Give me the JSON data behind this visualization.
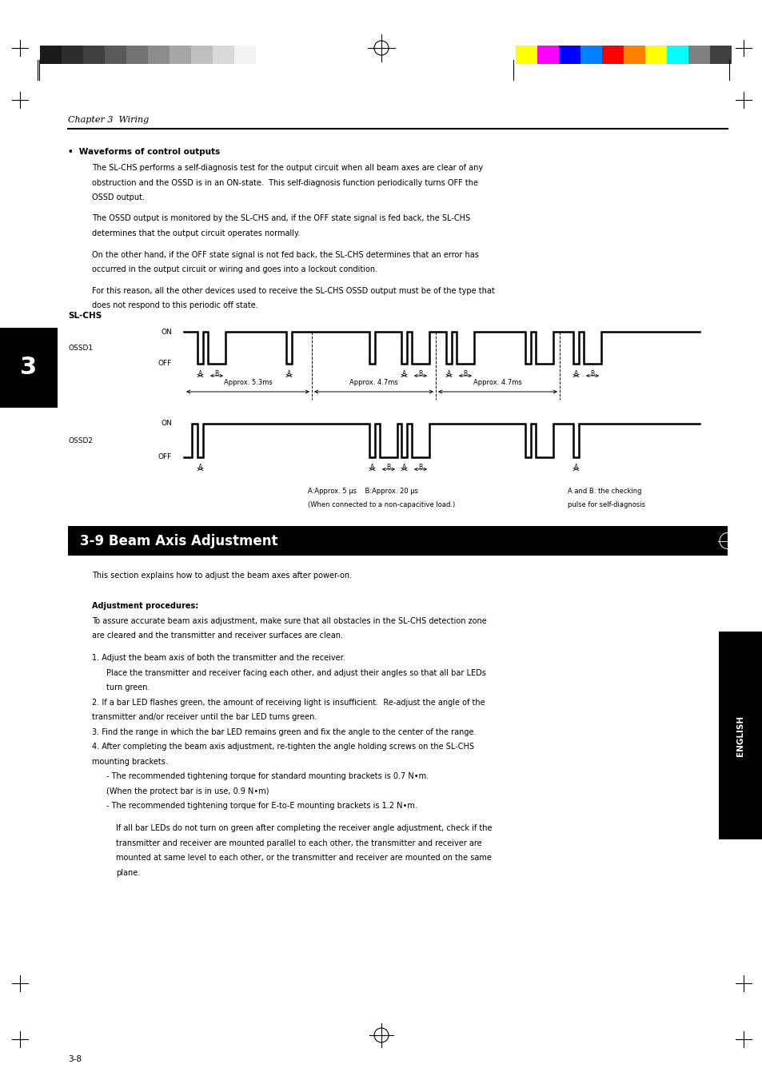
{
  "page_bg": "#ffffff",
  "page_width": 9.54,
  "page_height": 13.51,
  "dpi": 100,
  "header_bar_colors_left": [
    "#1a1a1a",
    "#2d2d2d",
    "#404040",
    "#595959",
    "#737373",
    "#8c8c8c",
    "#a6a6a6",
    "#bfbfbf",
    "#d9d9d9",
    "#f2f2f2"
  ],
  "header_bar_colors_right": [
    "#ffff00",
    "#ff00ff",
    "#0000ff",
    "#0080ff",
    "#ff0000",
    "#ff8000",
    "#ffff00",
    "#00ffff",
    "#808080",
    "#404040"
  ],
  "chapter_title": "Chapter 3  Wiring",
  "section_header": "3-9 Beam Axis Adjustment",
  "bullet_title": "Waveforms of control outputs",
  "para1_lines": [
    "The SL-CHS performs a self-diagnosis test for the output circuit when all beam axes are clear of any",
    "obstruction and the OSSD is in an ON-state.  This self-diagnosis function periodically turns OFF the",
    "OSSD output."
  ],
  "para2_lines": [
    "The OSSD output is monitored by the SL-CHS and, if the OFF state signal is fed back, the SL-CHS",
    "determines that the output circuit operates normally."
  ],
  "para3_lines": [
    "On the other hand, if the OFF state signal is not fed back, the SL-CHS determines that an error has",
    "occurred in the output circuit or wiring and goes into a lockout condition."
  ],
  "para4_lines": [
    "For this reason, all the other devices used to receive the SL-CHS OSSD output must be of the type that",
    "does not respond to this periodic off state."
  ],
  "slchs_label": "SL-CHS",
  "ossd1_label": "OSSD1",
  "ossd2_label": "OSSD2",
  "timing_label1": "Approx. 5.3ms",
  "timing_label2": "Approx. 4.7ms",
  "timing_label3": "Approx. 4.7ms",
  "note1": "A:Approx. 5 μs    B:Approx. 20 μs",
  "note2": "(When connected to a non-capacitive load.)",
  "note3_lines": [
    "A and B: the checking",
    "pulse for self-diagnosis"
  ],
  "section_body": "This section explains how to adjust the beam axes after power-on.",
  "adj_title": "Adjustment procedures:",
  "adj_intro_lines": [
    "To assure accurate beam axis adjustment, make sure that all obstacles in the SL-CHS detection zone",
    "are cleared and the transmitter and receiver surfaces are clean."
  ],
  "step1": "1. Adjust the beam axis of both the transmitter and the receiver.",
  "step1a_lines": [
    "Place the transmitter and receiver facing each other, and adjust their angles so that all bar LEDs",
    "turn green."
  ],
  "step2_lines": [
    "2. If a bar LED flashes green, the amount of receiving light is insufficient.  Re-adjust the angle of the",
    "transmitter and/or receiver until the bar LED turns green."
  ],
  "step3": "3. Find the range in which the bar LED remains green and fix the angle to the center of the range.",
  "step4_lines": [
    "4. After completing the beam axis adjustment, re-tighten the angle holding screws on the SL-CHS",
    "mounting brackets."
  ],
  "step4a_lines": [
    "- The recommended tightening torque for standard mounting brackets is 0.7 N•m.",
    "(When the protect bar is in use, 0.9 N•m)"
  ],
  "step4b": "- The recommended tightening torque for E-to-E mounting brackets is 1.2 N•m.",
  "note_box_lines": [
    "If all bar LEDs do not turn on green after completing the receiver angle adjustment, check if the",
    "transmitter and receiver are mounted parallel to each other, the transmitter and receiver are",
    "mounted at same level to each other, or the transmitter and receiver are mounted on the same",
    "plane."
  ],
  "side_tab_text": "ENGLISH",
  "chapter_num": "3",
  "page_num": "3-8"
}
